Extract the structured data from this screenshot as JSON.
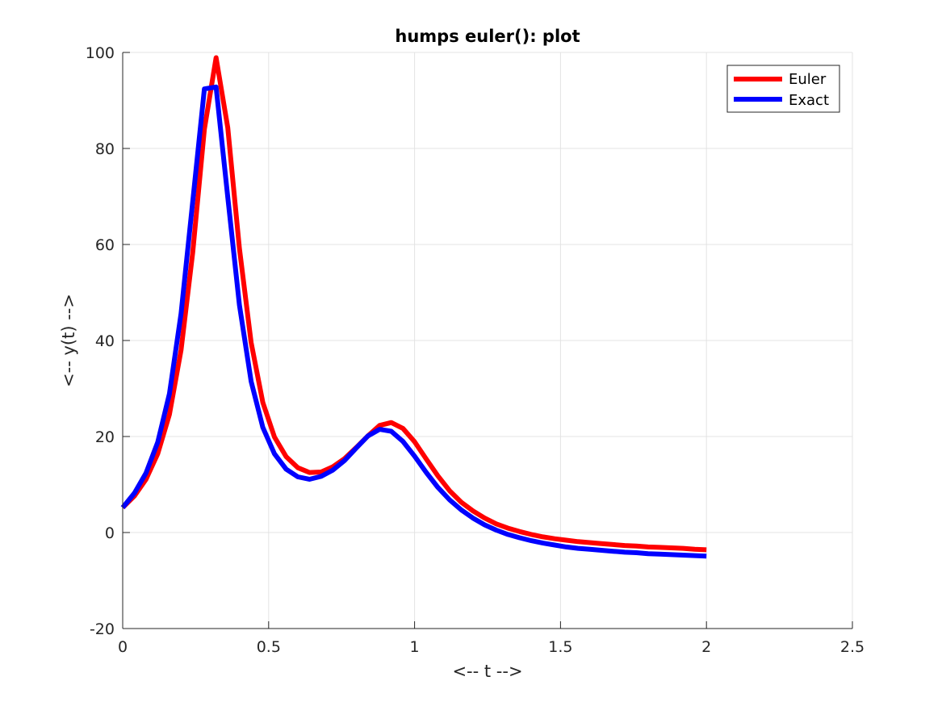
{
  "chart_data": {
    "type": "line",
    "title": "humps euler(): plot",
    "xlabel": "<-- t -->",
    "ylabel": "<-- y(t) -->",
    "xlim": [
      0,
      2.5
    ],
    "ylim": [
      -20,
      100
    ],
    "xticks": [
      0,
      0.5,
      1,
      1.5,
      2,
      2.5
    ],
    "xtick_labels": [
      "0",
      "0.5",
      "1",
      "1.5",
      "2",
      "2.5"
    ],
    "yticks": [
      -20,
      0,
      20,
      40,
      60,
      80,
      100
    ],
    "ytick_labels": [
      "-20",
      "0",
      "20",
      "40",
      "60",
      "80",
      "100"
    ],
    "grid": true,
    "legend_position": "top-right",
    "x": [
      0,
      0.04,
      0.08,
      0.12,
      0.16,
      0.2,
      0.24,
      0.28,
      0.32,
      0.36,
      0.4,
      0.44,
      0.48,
      0.52,
      0.56,
      0.6,
      0.64,
      0.68,
      0.72,
      0.76,
      0.8,
      0.84,
      0.88,
      0.92,
      0.96,
      1.0,
      1.04,
      1.08,
      1.12,
      1.16,
      1.2,
      1.24,
      1.28,
      1.32,
      1.36,
      1.4,
      1.44,
      1.48,
      1.52,
      1.56,
      1.6,
      1.64,
      1.68,
      1.72,
      1.76,
      1.8,
      1.84,
      1.88,
      1.92,
      1.96,
      2.0
    ],
    "series": [
      {
        "name": "Euler",
        "color": "#ff0000",
        "values": [
          5.2,
          7.6,
          11.1,
          16.4,
          24.6,
          38.0,
          58.4,
          84.0,
          98.9,
          84.3,
          59.2,
          39.6,
          27.1,
          19.9,
          15.8,
          13.5,
          12.5,
          12.6,
          13.7,
          15.4,
          17.7,
          20.1,
          22.3,
          22.9,
          21.7,
          18.9,
          15.3,
          11.8,
          8.7,
          6.3,
          4.5,
          3.0,
          1.8,
          0.9,
          0.2,
          -0.4,
          -0.9,
          -1.3,
          -1.6,
          -1.9,
          -2.1,
          -2.3,
          -2.5,
          -2.7,
          -2.8,
          -3.0,
          -3.1,
          -3.2,
          -3.3,
          -3.5,
          -3.6
        ]
      },
      {
        "name": "Exact",
        "color": "#0000ff",
        "values": [
          5.2,
          8.2,
          12.4,
          18.8,
          28.9,
          45.6,
          69.0,
          92.4,
          92.8,
          69.8,
          47.4,
          31.5,
          21.9,
          16.4,
          13.2,
          11.6,
          11.1,
          11.7,
          13.0,
          15.0,
          17.6,
          20.1,
          21.5,
          21.1,
          19.0,
          15.9,
          12.5,
          9.4,
          6.8,
          4.7,
          3.0,
          1.6,
          0.5,
          -0.4,
          -1.1,
          -1.7,
          -2.2,
          -2.6,
          -3.0,
          -3.3,
          -3.5,
          -3.7,
          -3.9,
          -4.1,
          -4.2,
          -4.4,
          -4.5,
          -4.6,
          -4.7,
          -4.8,
          -4.9
        ]
      }
    ]
  }
}
